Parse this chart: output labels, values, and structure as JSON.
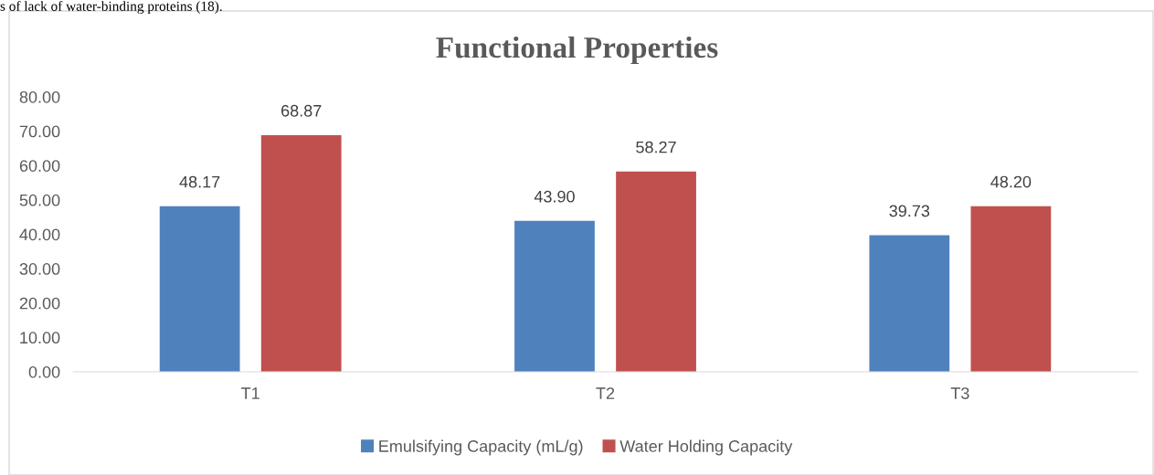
{
  "chart_data": {
    "type": "bar",
    "title": "Functional Properties",
    "categories": [
      "T1",
      "T2",
      "T3"
    ],
    "series": [
      {
        "name": "Emulsifying Capacity (mL/g)",
        "color": "#4f81bd",
        "values": [
          48.17,
          43.9,
          39.73
        ],
        "value_labels": [
          "48.17",
          "43.90",
          "39.73"
        ]
      },
      {
        "name": "Water Holding Capacity",
        "color": "#c0504d",
        "values": [
          68.87,
          58.27,
          48.2
        ],
        "value_labels": [
          "68.87",
          "58.27",
          "48.20"
        ]
      }
    ],
    "ylim": [
      0,
      80
    ],
    "yticks": [
      {
        "value": 0,
        "label": "0.00"
      },
      {
        "value": 10,
        "label": "10.00"
      },
      {
        "value": 20,
        "label": "20.00"
      },
      {
        "value": 30,
        "label": "30.00"
      },
      {
        "value": 40,
        "label": "40.00"
      },
      {
        "value": 50,
        "label": "50.00"
      },
      {
        "value": 60,
        "label": "60.00"
      },
      {
        "value": 70,
        "label": "70.00"
      },
      {
        "value": 80,
        "label": "80.00"
      }
    ],
    "grid": false,
    "legend": "bottom",
    "annotations": [
      "s of lack of water-binding proteins (18)."
    ]
  }
}
